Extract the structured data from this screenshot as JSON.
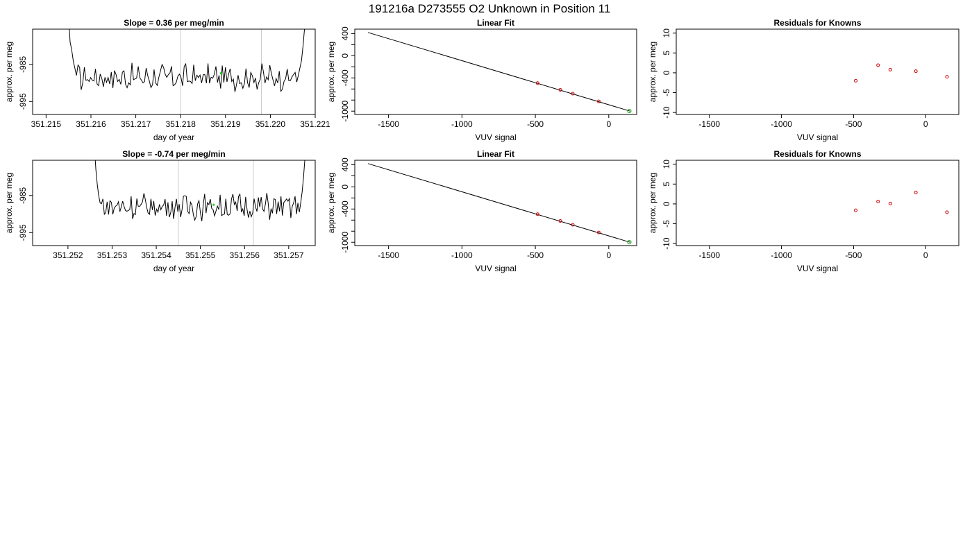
{
  "figure": {
    "title": "191216a      D273555   O2 Unknown in Position  11"
  },
  "chart_data": [
    {
      "type": "line",
      "title": "Slope =  0.36  per meg/min",
      "xlabel": "day of year",
      "ylabel": "approx. per meg",
      "xlim": [
        351.2147,
        351.221
      ],
      "ylim": [
        -998.5,
        -975.5
      ],
      "x_ticks": [
        "351.215",
        "351.216",
        "351.217",
        "351.218",
        "351.219",
        "351.220",
        "351.221"
      ],
      "y_ticks": [
        "-985",
        "-995"
      ],
      "vlines": [
        351.218,
        351.2198
      ],
      "line_color": "#000000",
      "vline_color": "#cccccc",
      "marker": {
        "x": 351.2189,
        "y": -987.4,
        "color": "#22cc22"
      },
      "trace": {
        "x_start": 351.2155,
        "x_end": 351.2208,
        "shape": [
          -972,
          -979,
          -981,
          -984,
          -986,
          -988
        ],
        "shape_end": [
          -988,
          -986,
          -984,
          -980,
          -975,
          -972
        ],
        "base": -988.5
      }
    },
    {
      "type": "scatter",
      "title": "Linear Fit",
      "xlabel": "VUV signal",
      "ylabel": "approx. per meg",
      "xlim": [
        -1730,
        190
      ],
      "ylim": [
        -1060,
        480
      ],
      "x_ticks": [
        "-1500",
        "-1000",
        "-500",
        "0"
      ],
      "y_ticks": [
        "-1000",
        "-800",
        "-600",
        "-400",
        "-200",
        "0",
        "200",
        "400"
      ],
      "y_tick_labels_shown": [
        "-1000",
        "-400",
        "0",
        "400"
      ],
      "fit_line": {
        "x": [
          -1640,
          145
        ],
        "y": [
          420,
          -1000
        ],
        "color": "#000000"
      },
      "points": {
        "x": [
          -485,
          -330,
          -245,
          -68
        ],
        "y": [
          -493,
          -615,
          -684,
          -823
        ],
        "color": "#cc0000"
      },
      "unknown": {
        "x": 140,
        "y": -998,
        "color": "#22aa22"
      }
    },
    {
      "type": "scatter",
      "title": "Residuals for Knowns",
      "xlabel": "VUV signal",
      "ylabel": "approx. per meg",
      "xlim": [
        -1730,
        230
      ],
      "ylim": [
        -10.5,
        11
      ],
      "x_ticks": [
        "-1500",
        "-1000",
        "-500",
        "0"
      ],
      "y_ticks": [
        "-10",
        "-5",
        "0",
        "5",
        "10"
      ],
      "points": {
        "x": [
          -485,
          -330,
          -245,
          -68,
          148
        ],
        "y": [
          -2.0,
          1.9,
          0.8,
          0.4,
          -1.0
        ],
        "color": "#cc0000"
      }
    },
    {
      "type": "line",
      "title": "Slope =  -0.74  per meg/min",
      "xlabel": "day of year",
      "ylabel": "approx. per meg",
      "xlim": [
        351.2512,
        351.2576
      ],
      "ylim": [
        -998.5,
        -975.5
      ],
      "x_ticks": [
        "351.252",
        "351.253",
        "351.254",
        "351.255",
        "351.256",
        "351.257"
      ],
      "y_ticks": [
        "-985",
        "-995"
      ],
      "vlines": [
        351.2545,
        351.2562
      ],
      "line_color": "#000000",
      "vline_color": "#cccccc",
      "marker": {
        "x": 351.2553,
        "y": -987.5,
        "color": "#22cc22"
      },
      "trace": {
        "x_start": 351.2526,
        "x_end": 351.2574,
        "shape": [
          -972,
          -978,
          -982,
          -985,
          -987
        ],
        "shape_end": [
          -987,
          -984,
          -980,
          -975,
          -972
        ],
        "base": -988.0
      }
    },
    {
      "type": "scatter",
      "title": "Linear Fit",
      "xlabel": "VUV signal",
      "ylabel": "approx. per meg",
      "xlim": [
        -1730,
        190
      ],
      "ylim": [
        -1060,
        480
      ],
      "x_ticks": [
        "-1500",
        "-1000",
        "-500",
        "0"
      ],
      "y_ticks": [
        "-1000",
        "-800",
        "-600",
        "-400",
        "-200",
        "0",
        "200",
        "400"
      ],
      "y_tick_labels_shown": [
        "-1000",
        "-400",
        "0",
        "400"
      ],
      "fit_line": {
        "x": [
          -1640,
          145
        ],
        "y": [
          420,
          -1000
        ],
        "color": "#000000"
      },
      "points": {
        "x": [
          -485,
          -330,
          -245,
          -68
        ],
        "y": [
          -493,
          -615,
          -684,
          -823
        ],
        "color": "#cc0000"
      },
      "unknown": {
        "x": 140,
        "y": -998,
        "color": "#22aa22"
      }
    },
    {
      "type": "scatter",
      "title": "Residuals for Knowns",
      "xlabel": "VUV signal",
      "ylabel": "approx. per meg",
      "xlim": [
        -1730,
        230
      ],
      "ylim": [
        -10.5,
        11
      ],
      "x_ticks": [
        "-1500",
        "-1000",
        "-500",
        "0"
      ],
      "y_ticks": [
        "-10",
        "-5",
        "0",
        "5",
        "10"
      ],
      "points": {
        "x": [
          -485,
          -330,
          -245,
          -68,
          148
        ],
        "y": [
          -1.6,
          0.6,
          0.1,
          2.9,
          -2.1
        ],
        "color": "#cc0000"
      }
    }
  ]
}
